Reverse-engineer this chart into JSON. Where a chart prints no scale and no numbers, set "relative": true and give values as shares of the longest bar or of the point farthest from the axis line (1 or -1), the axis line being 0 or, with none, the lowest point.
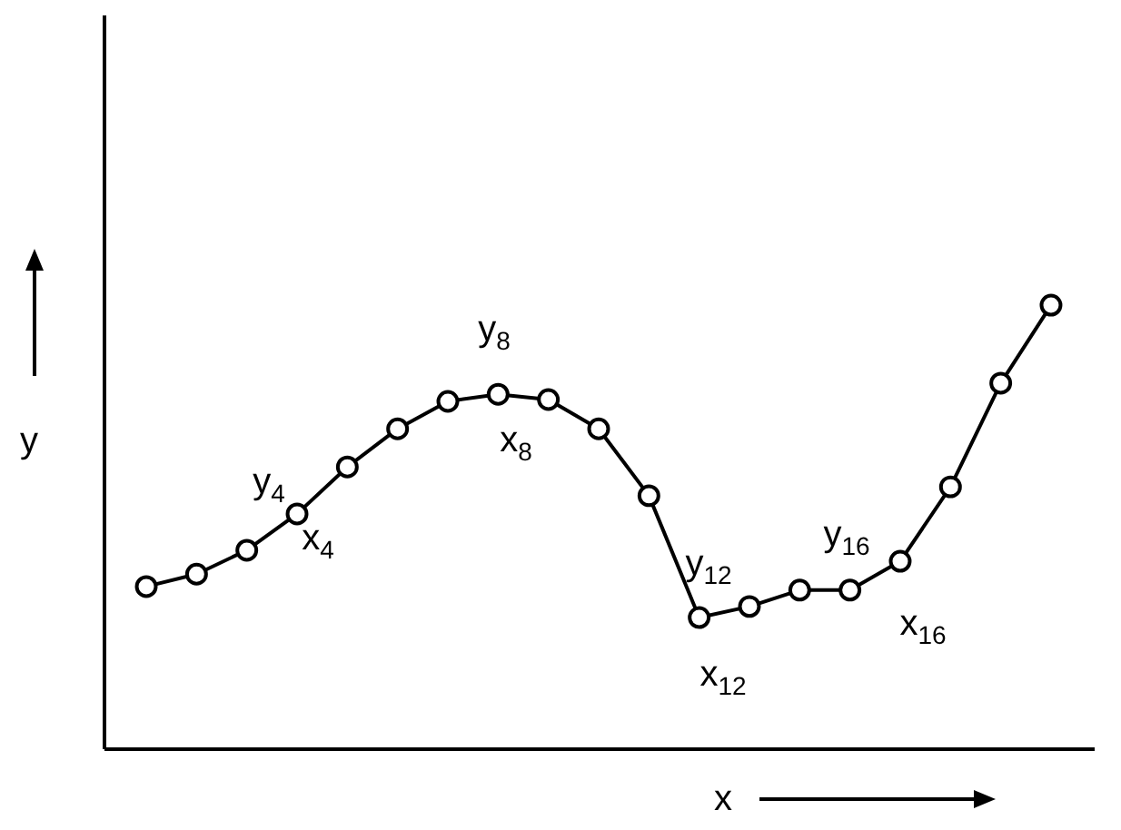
{
  "chart_data": {
    "type": "line",
    "relative": true,
    "xlabel": "x",
    "ylabel": "y",
    "grid": false,
    "marker": "circle",
    "line_style": "solid",
    "categories": [
      null,
      null,
      null,
      null,
      null,
      null,
      null,
      null,
      null,
      null,
      null,
      null,
      null,
      null,
      null,
      null,
      null,
      null,
      null
    ],
    "series": [
      {
        "color": "#000000",
        "values": [
          0.365,
          0.393,
          0.447,
          0.529,
          0.635,
          0.721,
          0.783,
          0.799,
          0.787,
          0.721,
          0.57,
          0.295,
          0.32,
          0.357,
          0.357,
          0.422,
          0.59,
          0.824,
          1
        ]
      }
    ],
    "annotations": [
      "y$_{4}$",
      "x$_{4}$",
      "y$_{8}$",
      "x$_{8}$",
      "y$_{12}$",
      "x$_{12}$",
      "y$_{16}$",
      "x$_{16}$"
    ]
  }
}
